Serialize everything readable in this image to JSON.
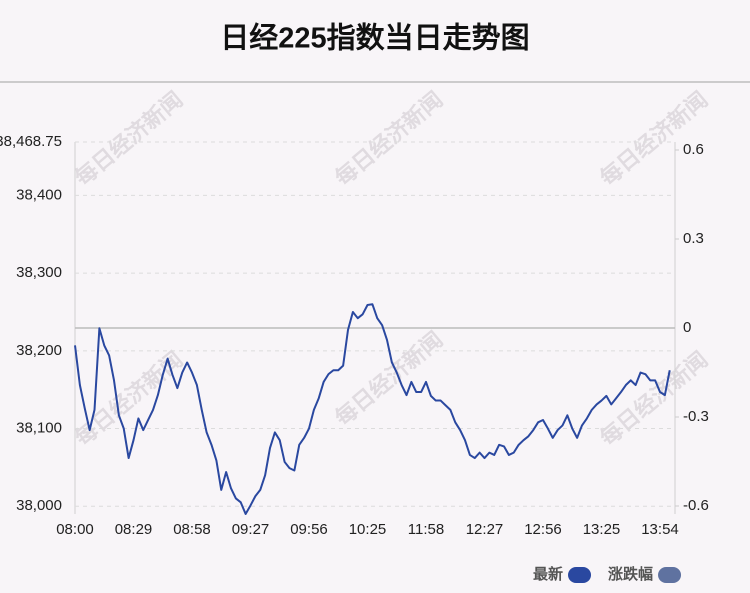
{
  "chart_data": {
    "type": "line",
    "title": "日经225指数当日走势图",
    "watermark": "每日经济新闻",
    "categories": [
      "08:00",
      null,
      null,
      null,
      null,
      null,
      null,
      null,
      null,
      null,
      null,
      null,
      "08:29",
      null,
      null,
      null,
      null,
      null,
      null,
      null,
      null,
      null,
      null,
      null,
      "08:58",
      null,
      null,
      null,
      null,
      null,
      null,
      null,
      null,
      null,
      null,
      null,
      "09:27",
      null,
      null,
      null,
      null,
      null,
      null,
      null,
      null,
      null,
      null,
      null,
      "09:56",
      null,
      null,
      null,
      null,
      null,
      null,
      null,
      null,
      null,
      null,
      null,
      "10:25",
      null,
      null,
      null,
      null,
      null,
      null,
      null,
      null,
      null,
      null,
      null,
      "11:58",
      null,
      null,
      null,
      null,
      null,
      null,
      null,
      null,
      null,
      null,
      null,
      "12:27",
      null,
      null,
      null,
      null,
      null,
      null,
      null,
      null,
      null,
      null,
      null,
      "12:56",
      null,
      null,
      null,
      null,
      null,
      null,
      null,
      null,
      null,
      null,
      null,
      "13:25",
      null,
      null,
      null,
      null,
      null,
      null,
      null,
      null,
      null,
      null,
      null,
      "13:54",
      null,
      null
    ],
    "series": [
      {
        "name": "最新",
        "color": "#2a48a0",
        "values": [
          38207,
          38156,
          38126,
          38098,
          38124,
          38229,
          38207,
          38194,
          38162,
          38117,
          38100,
          38062,
          38085,
          38113,
          38098,
          38111,
          38124,
          38143,
          38169,
          38190,
          38169,
          38152,
          38172,
          38185,
          38172,
          38156,
          38124,
          38095,
          38079,
          38059,
          38021,
          38044,
          38023,
          38010,
          38005,
          37990,
          38001,
          38013,
          38021,
          38040,
          38075,
          38095,
          38085,
          38057,
          38049,
          38046,
          38079,
          38088,
          38100,
          38124,
          38139,
          38160,
          38170,
          38175,
          38175,
          38181,
          38227,
          38250,
          38242,
          38247,
          38259,
          38260,
          38242,
          38233,
          38214,
          38185,
          38172,
          38156,
          38143,
          38160,
          38147,
          38147,
          38160,
          38142,
          38136,
          38136,
          38130,
          38124,
          38108,
          38098,
          38085,
          38066,
          38062,
          38069,
          38062,
          38069,
          38066,
          38079,
          38077,
          38066,
          38069,
          38079,
          38085,
          38090,
          38098,
          38108,
          38111,
          38100,
          38088,
          38098,
          38104,
          38117,
          38100,
          38088,
          38104,
          38113,
          38124,
          38131,
          38136,
          38142,
          38131,
          38139,
          38147,
          38156,
          38162,
          38156,
          38172,
          38170,
          38162,
          38162,
          38147,
          38143,
          38175
        ]
      },
      {
        "name": "涨跌幅",
        "color": "#5f72a0",
        "axis": "y2"
      }
    ],
    "ylim": [
      37990,
      38468.75
    ],
    "yticks": [
      {
        "value": 38000,
        "label": "38,000"
      },
      {
        "value": 38100,
        "label": "38,100"
      },
      {
        "value": 38200,
        "label": "38,200"
      },
      {
        "value": 38300,
        "label": "38,300"
      },
      {
        "value": 38400,
        "label": "38,400"
      },
      {
        "value": 38468.75,
        "label": "38,468.75"
      }
    ],
    "y2lim": [
      -0.627,
      0.627
    ],
    "y2ticks": [
      -0.6,
      -0.3,
      0,
      0.3,
      0.6
    ],
    "grid": true
  }
}
